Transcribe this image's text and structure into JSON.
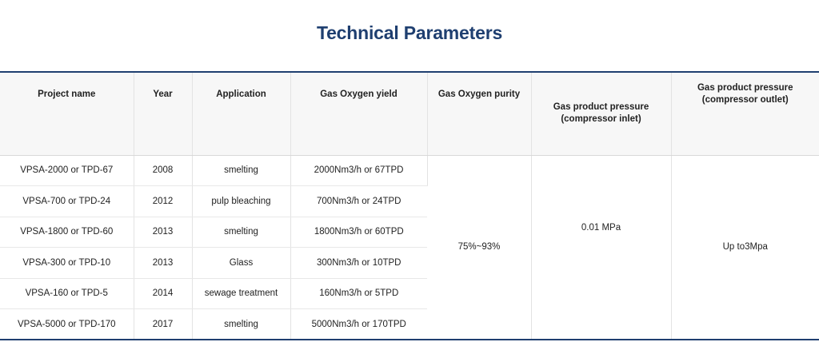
{
  "title": "Technical Parameters",
  "table": {
    "headers": [
      "Project name",
      "Year",
      "Application",
      "Gas Oxygen yield",
      "Gas Oxygen purity",
      "Gas product pressure (compressor inlet)",
      "Gas product pressure (compressor outlet)"
    ],
    "rows": [
      {
        "project": "VPSA-2000 or TPD-67",
        "year": "2008",
        "application": "smelting",
        "yield": "2000Nm3/h or 67TPD"
      },
      {
        "project": "VPSA-700 or TPD-24",
        "year": "2012",
        "application": "pulp bleaching",
        "yield": "700Nm3/h or 24TPD"
      },
      {
        "project": "VPSA-1800 or TPD-60",
        "year": "2013",
        "application": "smelting",
        "yield": "1800Nm3/h or 60TPD"
      },
      {
        "project": "VPSA-300 or TPD-10",
        "year": "2013",
        "application": "Glass",
        "yield": "300Nm3/h or 10TPD"
      },
      {
        "project": "VPSA-160 or TPD-5",
        "year": "2014",
        "application": "sewage treatment",
        "yield": "160Nm3/h or 5TPD"
      },
      {
        "project": "VPSA-5000 or TPD-170",
        "year": "2017",
        "application": "smelting",
        "yield": "5000Nm3/h or 170TPD"
      }
    ],
    "purity": "75%~93%",
    "pressure_inlet": "0.01 MPa",
    "pressure_outlet": "Up to3Mpa"
  }
}
